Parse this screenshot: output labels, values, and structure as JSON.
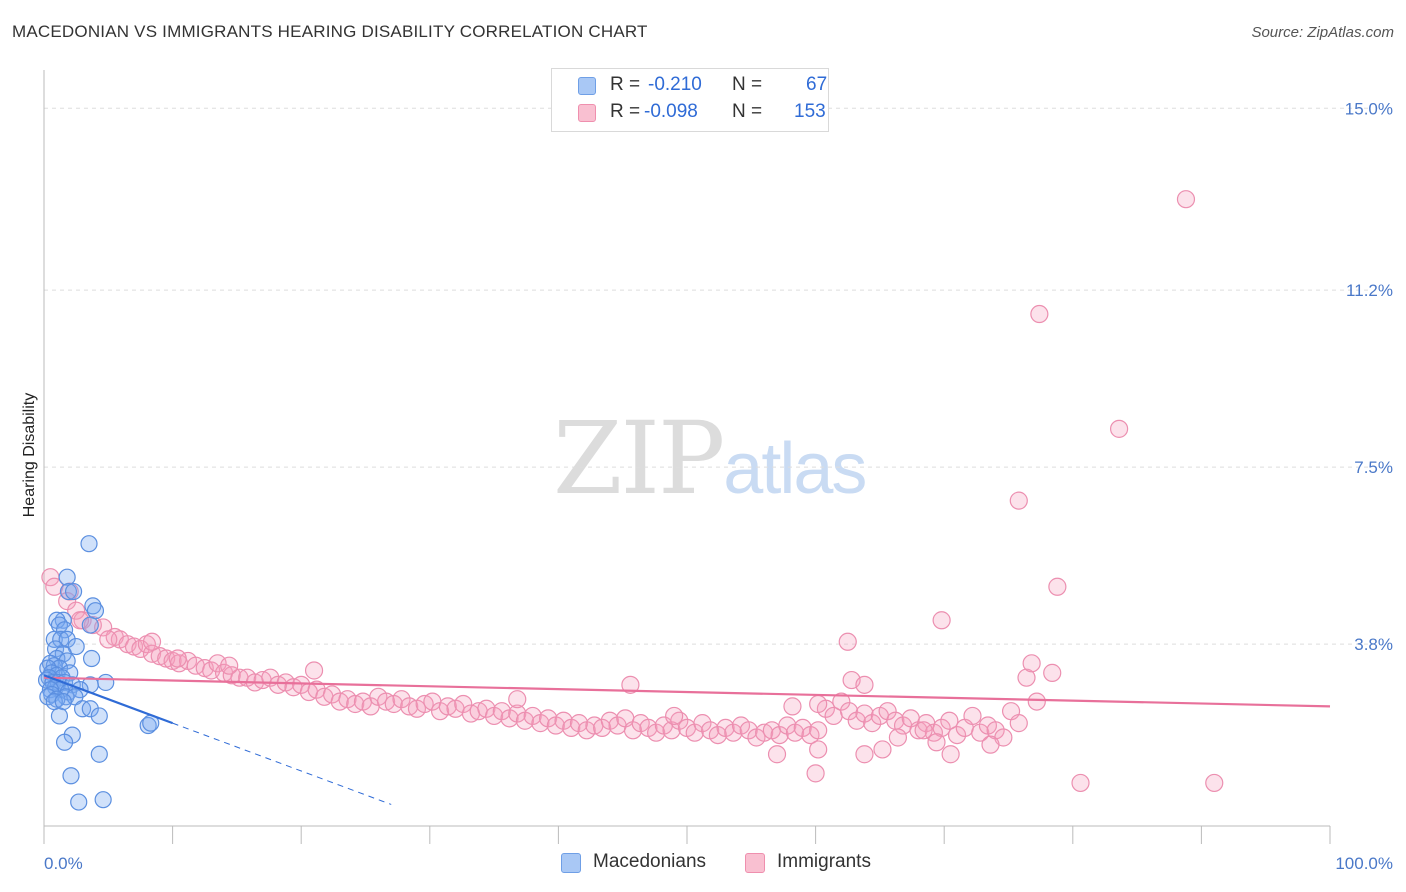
{
  "header": {
    "title": "MACEDONIAN VS IMMIGRANTS HEARING DISABILITY CORRELATION CHART",
    "source": "Source: ZipAtlas.com"
  },
  "watermark": {
    "zip": "ZIP",
    "atlas": "atlas"
  },
  "legend": {
    "rows": [
      {
        "r_label": "R =",
        "r_value": "-0.210",
        "n_label": "N =",
        "n_value": "67",
        "color": "#a9c8f5",
        "border": "#6f9fe6"
      },
      {
        "r_label": "R =",
        "r_value": "-0.098",
        "n_label": "N =",
        "n_value": "153",
        "color": "#f9c0d1",
        "border": "#ef8fae"
      }
    ]
  },
  "bottom_legend": {
    "macedonians": "Macedonians",
    "immigrants": "Immigrants"
  },
  "colors": {
    "blue_fill": "rgba(120,170,240,0.35)",
    "blue_stroke": "#5b8fe0",
    "blue_line": "#2f6bd6",
    "pink_fill": "rgba(245,160,190,0.30)",
    "pink_stroke": "#ec8fb0",
    "pink_line": "#e8709a",
    "grid": "#dddddd",
    "tick_text": "#4a78c8"
  },
  "chart_data": {
    "type": "scatter",
    "title": "MACEDONIAN VS IMMIGRANTS HEARING DISABILITY CORRELATION CHART",
    "xlabel": "",
    "ylabel": "Hearing Disability",
    "xlim": [
      0,
      100
    ],
    "ylim": [
      0,
      15.8
    ],
    "x_tick_labels": [
      {
        "x": 0,
        "label": "0.0%"
      },
      {
        "x": 100,
        "label": "100.0%"
      }
    ],
    "y_tick_labels": [
      {
        "y": 3.8,
        "label": "3.8%"
      },
      {
        "y": 7.5,
        "label": "7.5%"
      },
      {
        "y": 11.2,
        "label": "11.2%"
      },
      {
        "y": 15.0,
        "label": "15.0%"
      }
    ],
    "grid": true,
    "legend_position": "bottom",
    "series": [
      {
        "name": "Macedonians",
        "R": -0.21,
        "N": 67,
        "trend": {
          "x0": 0,
          "y0": 3.15,
          "x1": 10,
          "y1": 2.15,
          "dashed_to_x": 27
        },
        "points": [
          [
            3.5,
            5.9
          ],
          [
            1.8,
            5.2
          ],
          [
            1.9,
            4.9
          ],
          [
            2.3,
            4.9
          ],
          [
            3.8,
            4.6
          ],
          [
            4.0,
            4.5
          ],
          [
            1.5,
            4.3
          ],
          [
            1.0,
            4.3
          ],
          [
            3.6,
            4.2
          ],
          [
            1.2,
            4.2
          ],
          [
            1.6,
            4.1
          ],
          [
            0.8,
            3.9
          ],
          [
            1.3,
            3.9
          ],
          [
            1.8,
            3.9
          ],
          [
            2.5,
            3.75
          ],
          [
            0.9,
            3.7
          ],
          [
            1.5,
            3.6
          ],
          [
            3.7,
            3.5
          ],
          [
            1.0,
            3.5
          ],
          [
            1.8,
            3.45
          ],
          [
            0.5,
            3.4
          ],
          [
            0.8,
            3.35
          ],
          [
            1.2,
            3.3
          ],
          [
            0.3,
            3.3
          ],
          [
            0.6,
            3.2
          ],
          [
            1.0,
            3.15
          ],
          [
            2.0,
            3.2
          ],
          [
            1.4,
            3.1
          ],
          [
            0.4,
            3.1
          ],
          [
            0.2,
            3.05
          ],
          [
            0.7,
            3.0
          ],
          [
            1.1,
            3.0
          ],
          [
            1.6,
            3.0
          ],
          [
            2.2,
            2.95
          ],
          [
            0.9,
            2.9
          ],
          [
            1.3,
            2.85
          ],
          [
            4.8,
            3.0
          ],
          [
            3.6,
            2.95
          ],
          [
            0.5,
            2.85
          ],
          [
            1.9,
            2.8
          ],
          [
            2.8,
            2.85
          ],
          [
            0.6,
            2.75
          ],
          [
            0.3,
            2.7
          ],
          [
            1.7,
            2.7
          ],
          [
            2.4,
            2.7
          ],
          [
            1.0,
            2.65
          ],
          [
            0.8,
            2.6
          ],
          [
            1.5,
            2.6
          ],
          [
            3.0,
            2.45
          ],
          [
            3.6,
            2.45
          ],
          [
            4.3,
            2.3
          ],
          [
            1.2,
            2.3
          ],
          [
            8.1,
            2.1
          ],
          [
            8.3,
            2.15
          ],
          [
            2.2,
            1.9
          ],
          [
            1.6,
            1.75
          ],
          [
            4.3,
            1.5
          ],
          [
            2.1,
            1.05
          ],
          [
            2.7,
            0.5
          ],
          [
            4.6,
            0.55
          ]
        ]
      },
      {
        "name": "Immigrants",
        "R": -0.098,
        "N": 153,
        "trend": {
          "x0": 0,
          "y0": 3.1,
          "x1": 100,
          "y1": 2.5
        },
        "points": [
          [
            88.8,
            13.1
          ],
          [
            77.4,
            10.7
          ],
          [
            83.6,
            8.3
          ],
          [
            75.8,
            6.8
          ],
          [
            78.8,
            5.0
          ],
          [
            69.8,
            4.3
          ],
          [
            0.5,
            5.2
          ],
          [
            0.8,
            5.0
          ],
          [
            2.0,
            4.9
          ],
          [
            1.8,
            4.7
          ],
          [
            2.5,
            4.5
          ],
          [
            3.0,
            4.3
          ],
          [
            3.8,
            4.2
          ],
          [
            4.6,
            4.15
          ],
          [
            5.5,
            3.95
          ],
          [
            5.9,
            3.9
          ],
          [
            6.5,
            3.8
          ],
          [
            7.0,
            3.75
          ],
          [
            7.5,
            3.7
          ],
          [
            8.0,
            3.8
          ],
          [
            8.4,
            3.6
          ],
          [
            9.0,
            3.55
          ],
          [
            9.5,
            3.5
          ],
          [
            10.0,
            3.45
          ],
          [
            10.5,
            3.4
          ],
          [
            11.2,
            3.45
          ],
          [
            11.8,
            3.35
          ],
          [
            12.5,
            3.3
          ],
          [
            13.0,
            3.25
          ],
          [
            13.5,
            3.4
          ],
          [
            14.0,
            3.2
          ],
          [
            14.6,
            3.15
          ],
          [
            15.2,
            3.1
          ],
          [
            15.8,
            3.1
          ],
          [
            16.4,
            3.0
          ],
          [
            17.0,
            3.05
          ],
          [
            17.6,
            3.1
          ],
          [
            18.2,
            2.95
          ],
          [
            18.8,
            3.0
          ],
          [
            19.4,
            2.9
          ],
          [
            20.0,
            2.95
          ],
          [
            20.6,
            2.8
          ],
          [
            21.2,
            2.85
          ],
          [
            21.8,
            2.7
          ],
          [
            22.4,
            2.75
          ],
          [
            23.0,
            2.6
          ],
          [
            23.6,
            2.65
          ],
          [
            24.2,
            2.55
          ],
          [
            24.8,
            2.6
          ],
          [
            25.4,
            2.5
          ],
          [
            26.0,
            2.7
          ],
          [
            26.6,
            2.6
          ],
          [
            27.2,
            2.55
          ],
          [
            27.8,
            2.65
          ],
          [
            28.4,
            2.5
          ],
          [
            29.0,
            2.45
          ],
          [
            29.6,
            2.55
          ],
          [
            30.2,
            2.6
          ],
          [
            30.8,
            2.4
          ],
          [
            31.4,
            2.5
          ],
          [
            32.0,
            2.45
          ],
          [
            32.6,
            2.55
          ],
          [
            33.2,
            2.35
          ],
          [
            33.8,
            2.4
          ],
          [
            34.4,
            2.45
          ],
          [
            35.0,
            2.3
          ],
          [
            35.6,
            2.4
          ],
          [
            36.2,
            2.25
          ],
          [
            36.8,
            2.35
          ],
          [
            37.4,
            2.2
          ],
          [
            38.0,
            2.3
          ],
          [
            38.6,
            2.15
          ],
          [
            39.2,
            2.25
          ],
          [
            39.8,
            2.1
          ],
          [
            40.4,
            2.2
          ],
          [
            41.0,
            2.05
          ],
          [
            41.6,
            2.15
          ],
          [
            42.2,
            2.0
          ],
          [
            42.8,
            2.1
          ],
          [
            43.4,
            2.05
          ],
          [
            44.0,
            2.2
          ],
          [
            44.6,
            2.1
          ],
          [
            45.2,
            2.25
          ],
          [
            45.8,
            2.0
          ],
          [
            46.4,
            2.15
          ],
          [
            47.0,
            2.05
          ],
          [
            47.6,
            1.95
          ],
          [
            48.2,
            2.1
          ],
          [
            48.8,
            2.0
          ],
          [
            49.4,
            2.2
          ],
          [
            50.0,
            2.05
          ],
          [
            50.6,
            1.95
          ],
          [
            51.2,
            2.15
          ],
          [
            51.8,
            2.0
          ],
          [
            52.4,
            1.9
          ],
          [
            53.0,
            2.05
          ],
          [
            53.6,
            1.95
          ],
          [
            54.2,
            2.1
          ],
          [
            54.8,
            2.0
          ],
          [
            55.4,
            1.85
          ],
          [
            56.0,
            1.95
          ],
          [
            56.6,
            2.0
          ],
          [
            57.2,
            1.9
          ],
          [
            57.8,
            2.1
          ],
          [
            58.4,
            1.95
          ],
          [
            59.0,
            2.05
          ],
          [
            59.6,
            1.9
          ],
          [
            60.2,
            2.0
          ],
          [
            60.8,
            2.45
          ],
          [
            61.4,
            2.3
          ],
          [
            62.0,
            2.6
          ],
          [
            62.6,
            2.4
          ],
          [
            63.2,
            2.2
          ],
          [
            63.8,
            2.35
          ],
          [
            64.4,
            2.15
          ],
          [
            65.0,
            2.3
          ],
          [
            65.6,
            2.4
          ],
          [
            66.2,
            2.2
          ],
          [
            66.8,
            2.1
          ],
          [
            67.4,
            2.25
          ],
          [
            68.0,
            2.0
          ],
          [
            68.6,
            2.15
          ],
          [
            69.2,
            1.95
          ],
          [
            69.8,
            2.05
          ],
          [
            70.4,
            2.2
          ],
          [
            71.0,
            1.9
          ],
          [
            71.6,
            2.05
          ],
          [
            72.2,
            2.3
          ],
          [
            72.8,
            1.95
          ],
          [
            73.4,
            2.1
          ],
          [
            74.0,
            2.0
          ],
          [
            74.6,
            1.85
          ],
          [
            75.2,
            2.4
          ],
          [
            75.8,
            2.15
          ],
          [
            76.4,
            3.1
          ],
          [
            76.8,
            3.4
          ],
          [
            77.2,
            2.6
          ],
          [
            78.4,
            3.2
          ],
          [
            21.0,
            3.25
          ],
          [
            36.8,
            2.65
          ],
          [
            49.0,
            2.3
          ],
          [
            62.5,
            3.85
          ],
          [
            62.8,
            3.05
          ],
          [
            63.8,
            2.95
          ],
          [
            45.6,
            2.95
          ],
          [
            58.2,
            2.5
          ],
          [
            60.2,
            2.55
          ],
          [
            57.0,
            1.5
          ],
          [
            60.2,
            1.6
          ],
          [
            60.0,
            1.1
          ],
          [
            63.8,
            1.5
          ],
          [
            65.2,
            1.6
          ],
          [
            66.4,
            1.85
          ],
          [
            68.4,
            2.0
          ],
          [
            69.4,
            1.75
          ],
          [
            70.5,
            1.5
          ],
          [
            73.6,
            1.7
          ],
          [
            80.6,
            0.9
          ],
          [
            91.0,
            0.9
          ],
          [
            14.4,
            3.35
          ],
          [
            8.4,
            3.85
          ],
          [
            10.4,
            3.5
          ],
          [
            5.0,
            3.9
          ],
          [
            2.8,
            4.3
          ]
        ]
      }
    ]
  }
}
